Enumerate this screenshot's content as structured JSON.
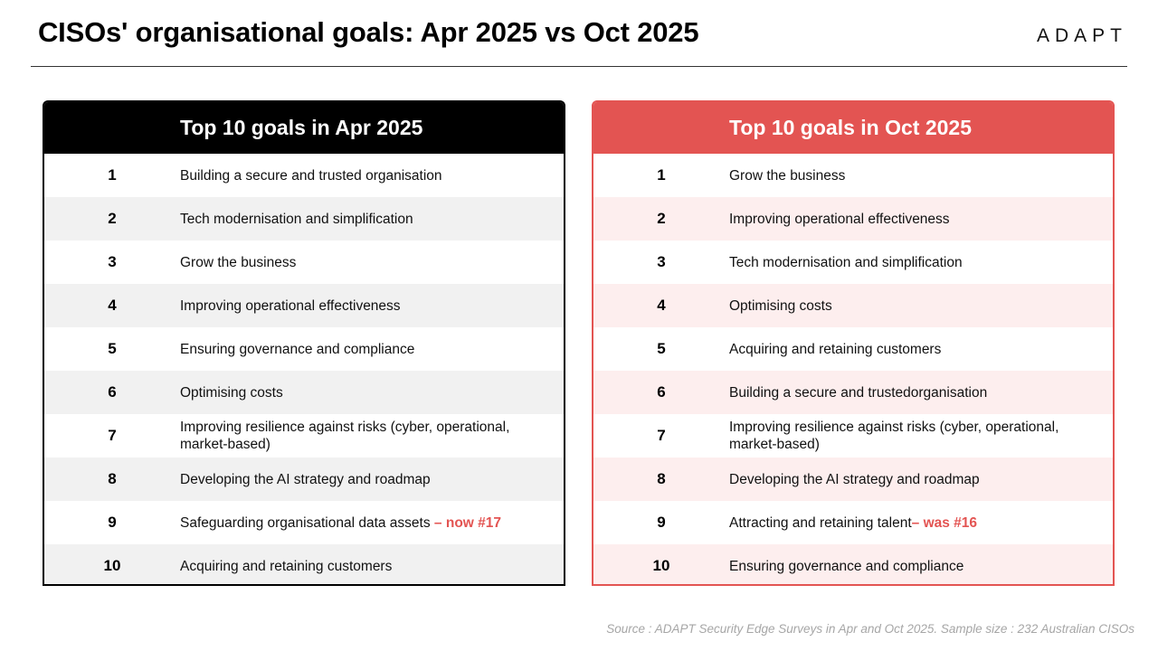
{
  "title": "CISOs' organisational goals: Apr 2025 vs Oct 2025",
  "logo": "ADAPT",
  "panels": {
    "apr": {
      "heading": "Top 10 goals in Apr 2025",
      "rows": [
        {
          "rank": "1",
          "goal": "Building a secure and trusted organisation",
          "note": ""
        },
        {
          "rank": "2",
          "goal": "Tech modernisation and simplification",
          "note": ""
        },
        {
          "rank": "3",
          "goal": "Grow the business",
          "note": ""
        },
        {
          "rank": "4",
          "goal": "Improving operational effectiveness",
          "note": ""
        },
        {
          "rank": "5",
          "goal": "Ensuring governance and compliance",
          "note": ""
        },
        {
          "rank": "6",
          "goal": "Optimising costs",
          "note": ""
        },
        {
          "rank": "7",
          "goal": "Improving resilience against risks (cyber, operational, market-based)",
          "note": ""
        },
        {
          "rank": "8",
          "goal": "Developing the AI strategy and roadmap",
          "note": ""
        },
        {
          "rank": "9",
          "goal": "Safeguarding organisational data assets ",
          "note": "– now #17"
        },
        {
          "rank": "10",
          "goal": "Acquiring and retaining customers",
          "note": ""
        }
      ]
    },
    "oct": {
      "heading": "Top 10 goals in Oct 2025",
      "rows": [
        {
          "rank": "1",
          "goal": "Grow the business",
          "note": ""
        },
        {
          "rank": "2",
          "goal": "Improving operational effectiveness",
          "note": ""
        },
        {
          "rank": "3",
          "goal": "Tech modernisation and simplification",
          "note": ""
        },
        {
          "rank": "4",
          "goal": "Optimising costs",
          "note": ""
        },
        {
          "rank": "5",
          "goal": "Acquiring and retaining customers",
          "note": ""
        },
        {
          "rank": "6",
          "goal": "Building a secure and trustedorganisation",
          "note": ""
        },
        {
          "rank": "7",
          "goal": "Improving resilience against risks (cyber, operational, market-based)",
          "note": ""
        },
        {
          "rank": "8",
          "goal": "Developing the AI strategy and roadmap",
          "note": ""
        },
        {
          "rank": "9",
          "goal": "Attracting and retaining talent",
          "note": "– was #16"
        },
        {
          "rank": "10",
          "goal": "Ensuring governance and compliance",
          "note": ""
        }
      ]
    }
  },
  "source": "Source : ADAPT Security Edge Surveys in Apr and Oct 2025. Sample size : 232 Australian CISOs",
  "colors": {
    "accent": "#e35452",
    "dark": "#000000",
    "alt_grey": "#f1f1f1",
    "alt_pink": "#fdeeee"
  }
}
